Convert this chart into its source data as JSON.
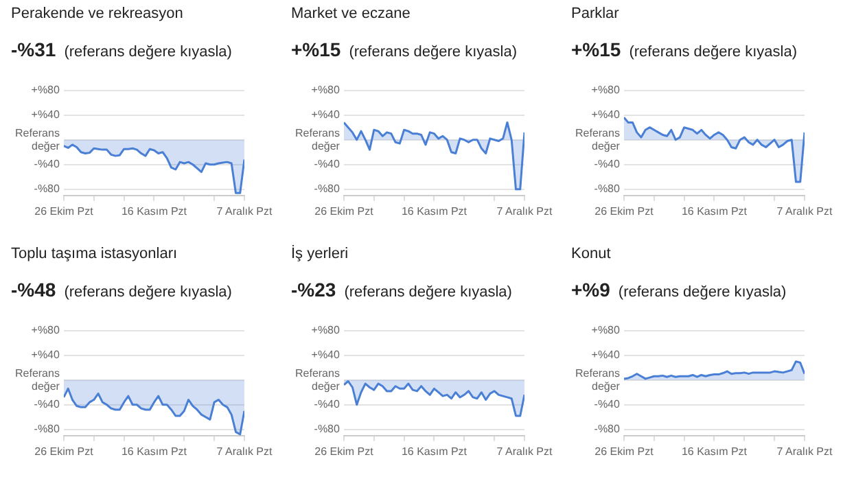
{
  "chart_data": [
    {
      "type": "area",
      "title": "Perakende ve rekreasyon",
      "subtitle": "-%31",
      "annotations": [
        "(referans değere kıyasla)"
      ],
      "grid": "y",
      "color": "#4a7fd6",
      "x": [
        "--10-26",
        "--10-27",
        "--10-28",
        "--10-29",
        "--10-30",
        "--10-31",
        "--11-01",
        "--11-02",
        "--11-03",
        "--11-04",
        "--11-05",
        "--11-06",
        "--11-07",
        "--11-08",
        "--11-09",
        "--11-10",
        "--11-11",
        "--11-12",
        "--11-13",
        "--11-14",
        "--11-15",
        "--11-16",
        "--11-17",
        "--11-18",
        "--11-19",
        "--11-20",
        "--11-21",
        "--11-22",
        "--11-23",
        "--11-24",
        "--11-25",
        "--11-26",
        "--11-27",
        "--11-28",
        "--11-29",
        "--11-30",
        "--12-01",
        "--12-02",
        "--12-03",
        "--12-04",
        "--12-05",
        "--12-06",
        "--12-07"
      ],
      "values": [
        -10,
        -13,
        -8,
        -12,
        -20,
        -22,
        -21,
        -14,
        -15,
        -16,
        -16,
        -24,
        -26,
        -25,
        -15,
        -15,
        -14,
        -16,
        -22,
        -26,
        -15,
        -17,
        -22,
        -20,
        -30,
        -45,
        -48,
        -36,
        -38,
        -36,
        -40,
        -46,
        -52,
        -38,
        -40,
        -40,
        -38,
        -37,
        -36,
        -38,
        -86,
        -86,
        -32
      ],
      "xlim": [
        "--10-26",
        "--12-07"
      ],
      "xticks": [
        {
          "value": "--10-26",
          "label": "26 Ekim Pzt"
        },
        {
          "value": "--11-02",
          "label": null
        },
        {
          "value": "--11-09",
          "label": null
        },
        {
          "value": "--11-16",
          "label": "16 Kasım Pzt"
        },
        {
          "value": "--11-23",
          "label": null
        },
        {
          "value": "--11-30",
          "label": null
        },
        {
          "value": "--12-07",
          "label": "7 Aralık Pzt"
        }
      ],
      "ylim": [
        -90,
        80
      ],
      "yticks": [
        {
          "value": 80,
          "label": "+%80"
        },
        {
          "value": 40,
          "label": "+%40"
        },
        {
          "value": 0,
          "label": "Referans değer"
        },
        {
          "value": -40,
          "label": "-%40"
        },
        {
          "value": -80,
          "label": "-%80"
        }
      ]
    },
    {
      "type": "area",
      "title": "Market ve eczane",
      "subtitle": "+%15",
      "annotations": [
        "(referans değere kıyasla)"
      ],
      "grid": "y",
      "color": "#4a7fd6",
      "x": [
        "--10-26",
        "--10-27",
        "--10-28",
        "--10-29",
        "--10-30",
        "--10-31",
        "--11-01",
        "--11-02",
        "--11-03",
        "--11-04",
        "--11-05",
        "--11-06",
        "--11-07",
        "--11-08",
        "--11-09",
        "--11-10",
        "--11-11",
        "--11-12",
        "--11-13",
        "--11-14",
        "--11-15",
        "--11-16",
        "--11-17",
        "--11-18",
        "--11-19",
        "--11-20",
        "--11-21",
        "--11-22",
        "--11-23",
        "--11-24",
        "--11-25",
        "--11-26",
        "--11-27",
        "--11-28",
        "--11-29",
        "--11-30",
        "--12-01",
        "--12-02",
        "--12-03",
        "--12-04",
        "--12-05",
        "--12-06",
        "--12-07"
      ],
      "values": [
        28,
        20,
        12,
        0,
        14,
        0,
        -16,
        16,
        14,
        6,
        12,
        10,
        -4,
        -6,
        16,
        14,
        10,
        10,
        8,
        -8,
        12,
        10,
        2,
        6,
        0,
        -20,
        -22,
        2,
        0,
        -4,
        0,
        0,
        -14,
        -22,
        2,
        0,
        -2,
        2,
        28,
        0,
        -80,
        -80,
        12
      ],
      "xlim": [
        "--10-26",
        "--12-07"
      ],
      "xticks": [
        {
          "value": "--10-26",
          "label": "26 Ekim Pzt"
        },
        {
          "value": "--11-02",
          "label": null
        },
        {
          "value": "--11-09",
          "label": null
        },
        {
          "value": "--11-16",
          "label": "16 Kasım Pzt"
        },
        {
          "value": "--11-23",
          "label": null
        },
        {
          "value": "--11-30",
          "label": null
        },
        {
          "value": "--12-07",
          "label": "7 Aralık Pzt"
        }
      ],
      "ylim": [
        -90,
        80
      ],
      "yticks": [
        {
          "value": 80,
          "label": "+%80"
        },
        {
          "value": 40,
          "label": "+%40"
        },
        {
          "value": 0,
          "label": "Referans değer"
        },
        {
          "value": -40,
          "label": "-%40"
        },
        {
          "value": -80,
          "label": "-%80"
        }
      ]
    },
    {
      "type": "area",
      "title": "Parklar",
      "subtitle": "+%15",
      "annotations": [
        "(referans değere kıyasla)"
      ],
      "grid": "y",
      "color": "#4a7fd6",
      "x": [
        "--10-26",
        "--10-27",
        "--10-28",
        "--10-29",
        "--10-30",
        "--10-31",
        "--11-01",
        "--11-02",
        "--11-03",
        "--11-04",
        "--11-05",
        "--11-06",
        "--11-07",
        "--11-08",
        "--11-09",
        "--11-10",
        "--11-11",
        "--11-12",
        "--11-13",
        "--11-14",
        "--11-15",
        "--11-16",
        "--11-17",
        "--11-18",
        "--11-19",
        "--11-20",
        "--11-21",
        "--11-22",
        "--11-23",
        "--11-24",
        "--11-25",
        "--11-26",
        "--11-27",
        "--11-28",
        "--11-29",
        "--11-30",
        "--12-01",
        "--12-02",
        "--12-03",
        "--12-04",
        "--12-05",
        "--12-06",
        "--12-07"
      ],
      "values": [
        36,
        28,
        28,
        12,
        4,
        16,
        20,
        16,
        12,
        8,
        6,
        16,
        0,
        4,
        20,
        18,
        16,
        10,
        16,
        8,
        2,
        8,
        12,
        8,
        0,
        -12,
        -14,
        0,
        4,
        -4,
        -8,
        0,
        -8,
        -12,
        -6,
        0,
        -12,
        -8,
        -2,
        0,
        -68,
        -68,
        12
      ],
      "xlim": [
        "--10-26",
        "--12-07"
      ],
      "xticks": [
        {
          "value": "--10-26",
          "label": "26 Ekim Pzt"
        },
        {
          "value": "--11-02",
          "label": null
        },
        {
          "value": "--11-09",
          "label": null
        },
        {
          "value": "--11-16",
          "label": "16 Kasım Pzt"
        },
        {
          "value": "--11-23",
          "label": null
        },
        {
          "value": "--11-30",
          "label": null
        },
        {
          "value": "--12-07",
          "label": "7 Aralık Pzt"
        }
      ],
      "ylim": [
        -90,
        80
      ],
      "yticks": [
        {
          "value": 80,
          "label": "+%80"
        },
        {
          "value": 40,
          "label": "+%40"
        },
        {
          "value": 0,
          "label": "Referans değer"
        },
        {
          "value": -40,
          "label": "-%40"
        },
        {
          "value": -80,
          "label": "-%80"
        }
      ]
    },
    {
      "type": "area",
      "title": "Toplu taşıma istasyonları",
      "subtitle": "-%48",
      "annotations": [
        "(referans değere kıyasla)"
      ],
      "grid": "y",
      "color": "#4a7fd6",
      "x": [
        "--10-26",
        "--10-27",
        "--10-28",
        "--10-29",
        "--10-30",
        "--10-31",
        "--11-01",
        "--11-02",
        "--11-03",
        "--11-04",
        "--11-05",
        "--11-06",
        "--11-07",
        "--11-08",
        "--11-09",
        "--11-10",
        "--11-11",
        "--11-12",
        "--11-13",
        "--11-14",
        "--11-15",
        "--11-16",
        "--11-17",
        "--11-18",
        "--11-19",
        "--11-20",
        "--11-21",
        "--11-22",
        "--11-23",
        "--11-24",
        "--11-25",
        "--11-26",
        "--11-27",
        "--11-28",
        "--11-29",
        "--11-30",
        "--12-01",
        "--12-02",
        "--12-03",
        "--12-04",
        "--12-05",
        "--12-06",
        "--12-07"
      ],
      "values": [
        -28,
        -14,
        -32,
        -42,
        -44,
        -44,
        -36,
        -32,
        -22,
        -36,
        -40,
        -46,
        -48,
        -48,
        -36,
        -26,
        -40,
        -40,
        -46,
        -48,
        -48,
        -36,
        -26,
        -40,
        -40,
        -48,
        -58,
        -58,
        -50,
        -32,
        -42,
        -48,
        -56,
        -60,
        -64,
        -36,
        -32,
        -40,
        -44,
        -56,
        -84,
        -88,
        -50
      ],
      "xlim": [
        "--10-26",
        "--12-07"
      ],
      "xticks": [
        {
          "value": "--10-26",
          "label": "26 Ekim Pzt"
        },
        {
          "value": "--11-02",
          "label": null
        },
        {
          "value": "--11-09",
          "label": null
        },
        {
          "value": "--11-16",
          "label": "16 Kasım Pzt"
        },
        {
          "value": "--11-23",
          "label": null
        },
        {
          "value": "--11-30",
          "label": null
        },
        {
          "value": "--12-07",
          "label": "7 Aralık Pzt"
        }
      ],
      "ylim": [
        -90,
        80
      ],
      "yticks": [
        {
          "value": 80,
          "label": "+%80"
        },
        {
          "value": 40,
          "label": "+%40"
        },
        {
          "value": 0,
          "label": "Referans değer"
        },
        {
          "value": -40,
          "label": "-%40"
        },
        {
          "value": -80,
          "label": "-%80"
        }
      ]
    },
    {
      "type": "area",
      "title": "İş yerleri",
      "subtitle": "-%23",
      "annotations": [
        "(referans değere kıyasla)"
      ],
      "grid": "y",
      "color": "#4a7fd6",
      "x": [
        "--10-26",
        "--10-27",
        "--10-28",
        "--10-29",
        "--10-30",
        "--10-31",
        "--11-01",
        "--11-02",
        "--11-03",
        "--11-04",
        "--11-05",
        "--11-06",
        "--11-07",
        "--11-08",
        "--11-09",
        "--11-10",
        "--11-11",
        "--11-12",
        "--11-13",
        "--11-14",
        "--11-15",
        "--11-16",
        "--11-17",
        "--11-18",
        "--11-19",
        "--11-20",
        "--11-21",
        "--11-22",
        "--11-23",
        "--11-24",
        "--11-25",
        "--11-26",
        "--11-27",
        "--11-28",
        "--11-29",
        "--11-30",
        "--12-01",
        "--12-02",
        "--12-03",
        "--12-04",
        "--12-05",
        "--12-06",
        "--12-07"
      ],
      "values": [
        -8,
        -2,
        -12,
        -40,
        -20,
        -6,
        -12,
        -16,
        -6,
        -10,
        -18,
        -18,
        -10,
        -14,
        -14,
        -6,
        -16,
        -18,
        -10,
        -18,
        -24,
        -14,
        -20,
        -26,
        -24,
        -30,
        -20,
        -28,
        -24,
        -18,
        -28,
        -30,
        -20,
        -32,
        -22,
        -18,
        -24,
        -26,
        -28,
        -30,
        -58,
        -58,
        -24
      ],
      "xlim": [
        "--10-26",
        "--12-07"
      ],
      "xticks": [
        {
          "value": "--10-26",
          "label": "26 Ekim Pzt"
        },
        {
          "value": "--11-02",
          "label": null
        },
        {
          "value": "--11-09",
          "label": null
        },
        {
          "value": "--11-16",
          "label": "16 Kasım Pzt"
        },
        {
          "value": "--11-23",
          "label": null
        },
        {
          "value": "--11-30",
          "label": null
        },
        {
          "value": "--12-07",
          "label": "7 Aralık Pzt"
        }
      ],
      "ylim": [
        -90,
        80
      ],
      "yticks": [
        {
          "value": 80,
          "label": "+%80"
        },
        {
          "value": 40,
          "label": "+%40"
        },
        {
          "value": 0,
          "label": "Referans değer"
        },
        {
          "value": -40,
          "label": "-%40"
        },
        {
          "value": -80,
          "label": "-%80"
        }
      ]
    },
    {
      "type": "area",
      "title": "Konut",
      "subtitle": "+%9",
      "annotations": [
        "(referans değere kıyasla)"
      ],
      "grid": "y",
      "color": "#4a7fd6",
      "x": [
        "--10-26",
        "--10-27",
        "--10-28",
        "--10-29",
        "--10-30",
        "--10-31",
        "--11-01",
        "--11-02",
        "--11-03",
        "--11-04",
        "--11-05",
        "--11-06",
        "--11-07",
        "--11-08",
        "--11-09",
        "--11-10",
        "--11-11",
        "--11-12",
        "--11-13",
        "--11-14",
        "--11-15",
        "--11-16",
        "--11-17",
        "--11-18",
        "--11-19",
        "--11-20",
        "--11-21",
        "--11-22",
        "--11-23",
        "--11-24",
        "--11-25",
        "--11-26",
        "--11-27",
        "--11-28",
        "--11-29",
        "--11-30",
        "--12-01",
        "--12-02",
        "--12-03",
        "--12-04",
        "--12-05",
        "--12-06",
        "--12-07"
      ],
      "values": [
        2,
        3,
        6,
        10,
        6,
        2,
        4,
        6,
        6,
        7,
        5,
        7,
        5,
        6,
        6,
        6,
        8,
        5,
        8,
        6,
        8,
        9,
        9,
        11,
        14,
        10,
        11,
        11,
        12,
        10,
        12,
        12,
        12,
        12,
        12,
        14,
        13,
        12,
        14,
        16,
        30,
        28,
        10
      ],
      "xlim": [
        "--10-26",
        "--12-07"
      ],
      "xticks": [
        {
          "value": "--10-26",
          "label": "26 Ekim Pzt"
        },
        {
          "value": "--11-02",
          "label": null
        },
        {
          "value": "--11-09",
          "label": null
        },
        {
          "value": "--11-16",
          "label": "16 Kasım Pzt"
        },
        {
          "value": "--11-23",
          "label": null
        },
        {
          "value": "--11-30",
          "label": null
        },
        {
          "value": "--12-07",
          "label": "7 Aralık Pzt"
        }
      ],
      "ylim": [
        -90,
        80
      ],
      "yticks": [
        {
          "value": 80,
          "label": "+%80"
        },
        {
          "value": 40,
          "label": "+%40"
        },
        {
          "value": 0,
          "label": "Referans değer"
        },
        {
          "value": -40,
          "label": "-%40"
        },
        {
          "value": -80,
          "label": "-%80"
        }
      ]
    }
  ]
}
